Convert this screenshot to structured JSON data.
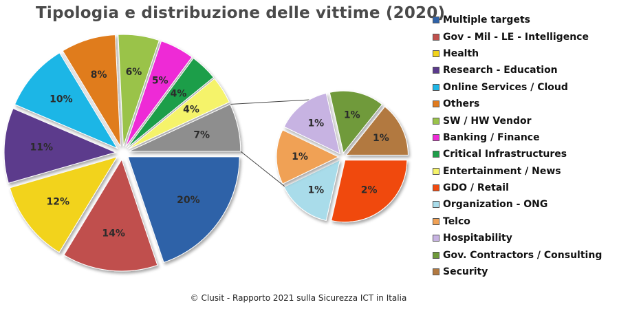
{
  "chart_data": {
    "type": "pie",
    "title": "Tipologia e distribuzione delle vittime (2020)",
    "main_pie": [
      {
        "label": "Multiple targets",
        "value": 20,
        "display": "20%",
        "color": "#2f62a8"
      },
      {
        "label": "Gov - Mil - LE - Intelligence",
        "value": 14,
        "display": "14%",
        "color": "#c0504d"
      },
      {
        "label": "Health",
        "value": 12,
        "display": "12%",
        "color": "#f2d31a"
      },
      {
        "label": "Research - Education",
        "value": 11,
        "display": "11%",
        "color": "#5b3a8c"
      },
      {
        "label": "Online Services / Cloud",
        "value": 10,
        "display": "10%",
        "color": "#1fb6e6"
      },
      {
        "label": "Others",
        "value": 8,
        "display": "8%",
        "color": "#e07b1f"
      },
      {
        "label": "SW / HW Vendor",
        "value": 6,
        "display": "6%",
        "color": "#9ac34a"
      },
      {
        "label": "Banking / Finance",
        "value": 5,
        "display": "5%",
        "color": "#ee2bd6"
      },
      {
        "label": "Critical Infrastructures",
        "value": 4,
        "display": "4%",
        "color": "#1f9e4a"
      },
      {
        "label": "Entertainment / News",
        "value": 4,
        "display": "4%",
        "color": "#f5f36a"
      },
      {
        "label": "",
        "value": 7,
        "display": "7%",
        "color": "#8e8e8e"
      }
    ],
    "secondary_pie": [
      {
        "label": "GDO / Retail",
        "value": 2,
        "display": "2%",
        "color": "#f04a10"
      },
      {
        "label": "Organization - ONG",
        "value": 1,
        "display": "1%",
        "color": "#a9dcea"
      },
      {
        "label": "Telco",
        "value": 1,
        "display": "1%",
        "color": "#f0a155"
      },
      {
        "label": "Hospitability",
        "value": 1,
        "display": "1%",
        "color": "#c7b3e2"
      },
      {
        "label": "Gov. Contractors / Consulting",
        "value": 1,
        "display": "1%",
        "color": "#6f9a3a"
      },
      {
        "label": "Security",
        "value": 1,
        "display": "1%",
        "color": "#b27940"
      }
    ],
    "legend": [
      {
        "label": "Multiple targets",
        "color": "#2f62a8"
      },
      {
        "label": "Gov - Mil - LE - Intelligence",
        "color": "#c0504d"
      },
      {
        "label": "Health",
        "color": "#f2d31a"
      },
      {
        "label": "Research - Education",
        "color": "#5b3a8c"
      },
      {
        "label": "Online Services / Cloud",
        "color": "#1fb6e6"
      },
      {
        "label": "Others",
        "color": "#e07b1f"
      },
      {
        "label": "SW / HW Vendor",
        "color": "#9ac34a"
      },
      {
        "label": "Banking / Finance",
        "color": "#ee2bd6"
      },
      {
        "label": "Critical Infrastructures",
        "color": "#1f9e4a"
      },
      {
        "label": "Entertainment / News",
        "color": "#f5f36a"
      },
      {
        "label": "GDO / Retail",
        "color": "#f04a10"
      },
      {
        "label": "Organization - ONG",
        "color": "#a9dcea"
      },
      {
        "label": "Telco",
        "color": "#f0a155"
      },
      {
        "label": "Hospitability",
        "color": "#c7b3e2"
      },
      {
        "label": "Gov. Contractors / Consulting",
        "color": "#6f9a3a"
      },
      {
        "label": "Security",
        "color": "#b27940"
      }
    ],
    "legend_position": "right"
  },
  "footer": "© Clusit - Rapporto 2021 sulla Sicurezza ICT in Italia"
}
